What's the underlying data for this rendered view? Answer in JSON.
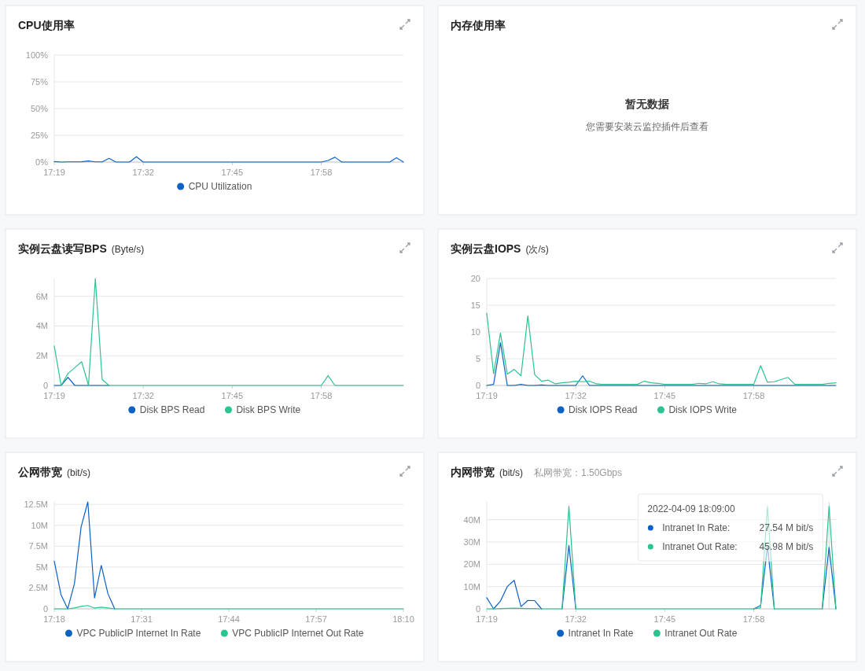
{
  "chart_data": [
    {
      "type": "line",
      "title": "CPU使用率",
      "legend": "bottom",
      "grid": "y",
      "x": [
        "2022-04-09T17:19",
        "2022-04-09T17:20",
        "2022-04-09T17:21",
        "2022-04-09T17:22",
        "2022-04-09T17:23",
        "2022-04-09T17:24",
        "2022-04-09T17:25",
        "2022-04-09T17:26",
        "2022-04-09T17:27",
        "2022-04-09T17:28",
        "2022-04-09T17:29",
        "2022-04-09T17:30",
        "2022-04-09T17:31",
        "2022-04-09T17:32",
        "2022-04-09T17:33",
        "2022-04-09T17:34",
        "2022-04-09T17:35",
        "2022-04-09T17:36",
        "2022-04-09T17:37",
        "2022-04-09T17:38",
        "2022-04-09T17:39",
        "2022-04-09T17:40",
        "2022-04-09T17:41",
        "2022-04-09T17:42",
        "2022-04-09T17:43",
        "2022-04-09T17:44",
        "2022-04-09T17:45",
        "2022-04-09T17:46",
        "2022-04-09T17:47",
        "2022-04-09T17:48",
        "2022-04-09T17:49",
        "2022-04-09T17:50",
        "2022-04-09T17:51",
        "2022-04-09T17:52",
        "2022-04-09T17:53",
        "2022-04-09T17:54",
        "2022-04-09T17:55",
        "2022-04-09T17:56",
        "2022-04-09T17:57",
        "2022-04-09T17:58",
        "2022-04-09T17:59",
        "2022-04-09T18:00",
        "2022-04-09T18:01",
        "2022-04-09T18:02",
        "2022-04-09T18:03",
        "2022-04-09T18:04",
        "2022-04-09T18:05",
        "2022-04-09T18:06",
        "2022-04-09T18:07",
        "2022-04-09T18:08",
        "2022-04-09T18:09",
        "2022-04-09T18:10"
      ],
      "xlim": [
        "2022-04-09T17:19",
        "2022-04-09T18:10"
      ],
      "xticks": [
        {
          "value": "2022-04-09T17:19",
          "label": "17:19"
        },
        {
          "value": "2022-04-09T17:32",
          "label": "17:32"
        },
        {
          "value": "2022-04-09T17:45",
          "label": "17:45"
        },
        {
          "value": "2022-04-09T17:58",
          "label": "17:58"
        }
      ],
      "ylim": [
        0,
        100
      ],
      "yticks": [
        {
          "value": 0,
          "label": "0%"
        },
        {
          "value": 25,
          "label": "25%"
        },
        {
          "value": 50,
          "label": "50%"
        },
        {
          "value": 75,
          "label": "75%"
        },
        {
          "value": 100,
          "label": "100%"
        }
      ],
      "series": [
        {
          "name": "CPU Utilization",
          "color": "#0b62c4",
          "values": [
            0.5,
            0,
            0.2,
            0.2,
            0.3,
            1,
            0.2,
            0.2,
            3.5,
            0,
            0,
            0,
            5,
            0,
            0,
            0,
            0,
            0,
            0,
            0,
            0,
            0,
            0,
            0,
            0,
            0,
            0,
            0,
            0,
            0,
            0,
            0,
            0,
            0,
            0,
            0,
            0,
            0,
            0,
            0,
            1.5,
            4.5,
            0,
            0,
            0,
            0,
            0,
            0,
            0,
            0,
            4,
            0
          ]
        }
      ]
    },
    {
      "type": "other",
      "title": "内存使用率",
      "annotations": [
        "暂无数据",
        "您需要安装云监控插件后查看"
      ]
    },
    {
      "type": "line",
      "title": "实例云盘读写BPS",
      "subtitle": "(Byte/s)",
      "legend": "bottom",
      "grid": "y",
      "x": [
        "2022-04-09T17:19",
        "2022-04-09T17:20",
        "2022-04-09T17:21",
        "2022-04-09T17:22",
        "2022-04-09T17:23",
        "2022-04-09T17:24",
        "2022-04-09T17:25",
        "2022-04-09T17:26",
        "2022-04-09T17:27",
        "2022-04-09T17:28",
        "2022-04-09T17:29",
        "2022-04-09T17:30",
        "2022-04-09T17:31",
        "2022-04-09T17:32",
        "2022-04-09T17:33",
        "2022-04-09T17:34",
        "2022-04-09T17:35",
        "2022-04-09T17:36",
        "2022-04-09T17:37",
        "2022-04-09T17:38",
        "2022-04-09T17:39",
        "2022-04-09T17:40",
        "2022-04-09T17:41",
        "2022-04-09T17:42",
        "2022-04-09T17:43",
        "2022-04-09T17:44",
        "2022-04-09T17:45",
        "2022-04-09T17:46",
        "2022-04-09T17:47",
        "2022-04-09T17:48",
        "2022-04-09T17:49",
        "2022-04-09T17:50",
        "2022-04-09T17:51",
        "2022-04-09T17:52",
        "2022-04-09T17:53",
        "2022-04-09T17:54",
        "2022-04-09T17:55",
        "2022-04-09T17:56",
        "2022-04-09T17:57",
        "2022-04-09T17:58",
        "2022-04-09T17:59",
        "2022-04-09T18:00",
        "2022-04-09T18:01",
        "2022-04-09T18:02",
        "2022-04-09T18:03",
        "2022-04-09T18:04",
        "2022-04-09T18:05",
        "2022-04-09T18:06",
        "2022-04-09T18:07",
        "2022-04-09T18:08",
        "2022-04-09T18:09",
        "2022-04-09T18:10"
      ],
      "xlim": [
        "2022-04-09T17:19",
        "2022-04-09T18:10"
      ],
      "xticks": [
        {
          "value": "2022-04-09T17:19",
          "label": "17:19"
        },
        {
          "value": "2022-04-09T17:32",
          "label": "17:32"
        },
        {
          "value": "2022-04-09T17:45",
          "label": "17:45"
        },
        {
          "value": "2022-04-09T17:58",
          "label": "17:58"
        }
      ],
      "ylim": [
        0,
        7200000
      ],
      "yticks": [
        {
          "value": 0,
          "label": "0"
        },
        {
          "value": 2000000,
          "label": "2M"
        },
        {
          "value": 4000000,
          "label": "4M"
        },
        {
          "value": 6000000,
          "label": "6M"
        }
      ],
      "series": [
        {
          "name": "Disk BPS Read",
          "color": "#0b62c4",
          "values": [
            0,
            0,
            550000,
            0,
            0,
            0,
            0,
            0,
            0,
            null,
            null,
            null,
            null,
            null,
            null,
            null,
            null,
            null,
            null,
            null,
            null,
            null,
            null,
            null,
            null,
            null,
            null,
            null,
            null,
            null,
            null,
            null,
            null,
            null,
            null,
            null,
            null,
            null,
            null,
            null,
            null,
            null,
            null,
            null,
            null,
            null,
            null,
            null,
            null,
            null,
            null,
            null
          ]
        },
        {
          "name": "Disk BPS Write",
          "color": "#2bc48f",
          "values": [
            2650000,
            0,
            800000,
            1200000,
            1600000,
            0,
            7200000,
            400000,
            0,
            0,
            0,
            0,
            0,
            0,
            0,
            0,
            0,
            0,
            0,
            0,
            0,
            0,
            0,
            0,
            0,
            0,
            0,
            0,
            0,
            0,
            0,
            0,
            0,
            0,
            0,
            0,
            0,
            0,
            0,
            0,
            650000,
            0,
            0,
            0,
            0,
            0,
            0,
            0,
            0,
            0,
            0,
            0
          ]
        }
      ]
    },
    {
      "type": "line",
      "title": "实例云盘IOPS",
      "subtitle": "(次/s)",
      "legend": "bottom",
      "grid": "y",
      "x": [
        "2022-04-09T17:19",
        "2022-04-09T17:20",
        "2022-04-09T17:21",
        "2022-04-09T17:22",
        "2022-04-09T17:23",
        "2022-04-09T17:24",
        "2022-04-09T17:25",
        "2022-04-09T17:26",
        "2022-04-09T17:27",
        "2022-04-09T17:28",
        "2022-04-09T17:29",
        "2022-04-09T17:30",
        "2022-04-09T17:31",
        "2022-04-09T17:32",
        "2022-04-09T17:33",
        "2022-04-09T17:34",
        "2022-04-09T17:35",
        "2022-04-09T17:36",
        "2022-04-09T17:37",
        "2022-04-09T17:38",
        "2022-04-09T17:39",
        "2022-04-09T17:40",
        "2022-04-09T17:41",
        "2022-04-09T17:42",
        "2022-04-09T17:43",
        "2022-04-09T17:44",
        "2022-04-09T17:45",
        "2022-04-09T17:46",
        "2022-04-09T17:47",
        "2022-04-09T17:48",
        "2022-04-09T17:49",
        "2022-04-09T17:50",
        "2022-04-09T17:51",
        "2022-04-09T17:52",
        "2022-04-09T17:53",
        "2022-04-09T17:54",
        "2022-04-09T17:55",
        "2022-04-09T17:56",
        "2022-04-09T17:57",
        "2022-04-09T17:58",
        "2022-04-09T17:59",
        "2022-04-09T18:00",
        "2022-04-09T18:01",
        "2022-04-09T18:02",
        "2022-04-09T18:03",
        "2022-04-09T18:04",
        "2022-04-09T18:05",
        "2022-04-09T18:06",
        "2022-04-09T18:07",
        "2022-04-09T18:08",
        "2022-04-09T18:09",
        "2022-04-09T18:10"
      ],
      "xlim": [
        "2022-04-09T17:19",
        "2022-04-09T18:10"
      ],
      "xticks": [
        {
          "value": "2022-04-09T17:19",
          "label": "17:19"
        },
        {
          "value": "2022-04-09T17:32",
          "label": "17:32"
        },
        {
          "value": "2022-04-09T17:45",
          "label": "17:45"
        },
        {
          "value": "2022-04-09T17:58",
          "label": "17:58"
        }
      ],
      "ylim": [
        0,
        20
      ],
      "yticks": [
        0,
        5,
        10,
        15,
        20
      ],
      "series": [
        {
          "name": "Disk IOPS Read",
          "color": "#0b62c4",
          "values": [
            0,
            0.2,
            8,
            0,
            0,
            0.2,
            0,
            0,
            0.1,
            0,
            0,
            0,
            0,
            0,
            1.8,
            0,
            0,
            0,
            0,
            0,
            0,
            0,
            0,
            0,
            0,
            0,
            0,
            0,
            0,
            0,
            0,
            0,
            0,
            0,
            0,
            0,
            0,
            0,
            0,
            0,
            0,
            0,
            0,
            0,
            0,
            0,
            0,
            0,
            0,
            0,
            0,
            0
          ]
        },
        {
          "name": "Disk IOPS Write",
          "color": "#2bc48f",
          "values": [
            13.5,
            2.2,
            9.8,
            2.1,
            3,
            1.8,
            13,
            2,
            0.8,
            1,
            0.3,
            0.5,
            0.6,
            0.8,
            0.7,
            0.8,
            0.3,
            0.2,
            0.2,
            0.2,
            0.2,
            0.2,
            0.2,
            0.8,
            0.5,
            0.4,
            0.2,
            0.2,
            0.2,
            0.2,
            0.2,
            0.4,
            0.3,
            0.7,
            0.3,
            0.2,
            0.2,
            0.2,
            0.2,
            0.2,
            3.7,
            0.6,
            0.7,
            1.1,
            1.5,
            0.2,
            0.2,
            0.2,
            0.2,
            0.2,
            0.4,
            0.5
          ]
        }
      ]
    },
    {
      "type": "line",
      "title": "公网带宽",
      "subtitle": "(bit/s)",
      "legend": "bottom",
      "grid": "y",
      "x": [
        "2022-04-09T17:18",
        "2022-04-09T17:19",
        "2022-04-09T17:20",
        "2022-04-09T17:21",
        "2022-04-09T17:22",
        "2022-04-09T17:23",
        "2022-04-09T17:24",
        "2022-04-09T17:25",
        "2022-04-09T17:26",
        "2022-04-09T17:27",
        "2022-04-09T17:28",
        "2022-04-09T17:29",
        "2022-04-09T17:30",
        "2022-04-09T17:31",
        "2022-04-09T17:32",
        "2022-04-09T17:33",
        "2022-04-09T17:34",
        "2022-04-09T17:35",
        "2022-04-09T17:36",
        "2022-04-09T17:37",
        "2022-04-09T17:38",
        "2022-04-09T17:39",
        "2022-04-09T17:40",
        "2022-04-09T17:41",
        "2022-04-09T17:42",
        "2022-04-09T17:43",
        "2022-04-09T17:44",
        "2022-04-09T17:45",
        "2022-04-09T17:46",
        "2022-04-09T17:47",
        "2022-04-09T17:48",
        "2022-04-09T17:49",
        "2022-04-09T17:50",
        "2022-04-09T17:51",
        "2022-04-09T17:52",
        "2022-04-09T17:53",
        "2022-04-09T17:54",
        "2022-04-09T17:55",
        "2022-04-09T17:56",
        "2022-04-09T17:57",
        "2022-04-09T17:58",
        "2022-04-09T17:59",
        "2022-04-09T18:00",
        "2022-04-09T18:01",
        "2022-04-09T18:02",
        "2022-04-09T18:03",
        "2022-04-09T18:04",
        "2022-04-09T18:05",
        "2022-04-09T18:06",
        "2022-04-09T18:07",
        "2022-04-09T18:08",
        "2022-04-09T18:09",
        "2022-04-09T18:10"
      ],
      "xlim": [
        "2022-04-09T17:18",
        "2022-04-09T18:10"
      ],
      "xticks": [
        {
          "value": "2022-04-09T17:18",
          "label": "17:18"
        },
        {
          "value": "2022-04-09T17:31",
          "label": "17:31"
        },
        {
          "value": "2022-04-09T17:44",
          "label": "17:44"
        },
        {
          "value": "2022-04-09T17:57",
          "label": "17:57"
        },
        {
          "value": "2022-04-09T18:10",
          "label": "18:10"
        }
      ],
      "ylim": [
        0,
        12800000
      ],
      "yticks": [
        {
          "value": 0,
          "label": "0"
        },
        {
          "value": 2500000,
          "label": "2.5M"
        },
        {
          "value": 5000000,
          "label": "5M"
        },
        {
          "value": 7500000,
          "label": "7.5M"
        },
        {
          "value": 10000000,
          "label": "10M"
        },
        {
          "value": 12500000,
          "label": "12.5M"
        }
      ],
      "series": [
        {
          "name": "VPC PublicIP Internet In Rate",
          "color": "#0b62c4",
          "values": [
            5700000,
            1700000,
            0,
            3000000,
            9800000,
            12800000,
            1300000,
            5200000,
            1800000,
            0,
            null,
            null,
            null,
            null,
            null,
            null,
            null,
            null,
            null,
            null,
            null,
            null,
            null,
            null,
            null,
            null,
            null,
            null,
            null,
            null,
            null,
            null,
            null,
            null,
            null,
            null,
            null,
            null,
            null,
            null,
            null,
            null,
            null,
            null,
            null,
            null,
            null,
            null,
            null,
            null,
            null,
            null,
            null
          ]
        },
        {
          "name": "VPC PublicIP Internet Out Rate",
          "color": "#2bc48f",
          "values": [
            0,
            0,
            0,
            100000,
            300000,
            400000,
            100000,
            200000,
            100000,
            0,
            0,
            0,
            0,
            0,
            0,
            0,
            0,
            0,
            0,
            0,
            0,
            0,
            0,
            0,
            0,
            0,
            0,
            0,
            0,
            0,
            0,
            0,
            0,
            0,
            0,
            0,
            0,
            0,
            0,
            0,
            0,
            0,
            0,
            0,
            0,
            0,
            0,
            0,
            0,
            0,
            0,
            0,
            0
          ]
        }
      ]
    },
    {
      "type": "line",
      "title": "内网带宽",
      "subtitle": "(bit/s)",
      "legend": "bottom",
      "grid": "y",
      "annotations": [
        "私网带宽：1.50Gbps",
        "2022-04-09 18:09:00",
        "Intranet In Rate:",
        "Intranet Out Rate:",
        "27.54 M bit/s",
        "45.98 M bit/s"
      ],
      "ref_lines": [
        {
          "axis": "x",
          "value": "2022-04-09T18:09",
          "color": "#d6d6d6"
        }
      ],
      "x": [
        "2022-04-09T17:19",
        "2022-04-09T17:20",
        "2022-04-09T17:21",
        "2022-04-09T17:22",
        "2022-04-09T17:23",
        "2022-04-09T17:24",
        "2022-04-09T17:25",
        "2022-04-09T17:26",
        "2022-04-09T17:27",
        "2022-04-09T17:28",
        "2022-04-09T17:29",
        "2022-04-09T17:30",
        "2022-04-09T17:31",
        "2022-04-09T17:32",
        "2022-04-09T17:33",
        "2022-04-09T17:34",
        "2022-04-09T17:35",
        "2022-04-09T17:36",
        "2022-04-09T17:37",
        "2022-04-09T17:38",
        "2022-04-09T17:39",
        "2022-04-09T17:40",
        "2022-04-09T17:41",
        "2022-04-09T17:42",
        "2022-04-09T17:43",
        "2022-04-09T17:44",
        "2022-04-09T17:45",
        "2022-04-09T17:46",
        "2022-04-09T17:47",
        "2022-04-09T17:48",
        "2022-04-09T17:49",
        "2022-04-09T17:50",
        "2022-04-09T17:51",
        "2022-04-09T17:52",
        "2022-04-09T17:53",
        "2022-04-09T17:54",
        "2022-04-09T17:55",
        "2022-04-09T17:56",
        "2022-04-09T17:57",
        "2022-04-09T17:58",
        "2022-04-09T17:59",
        "2022-04-09T18:00",
        "2022-04-09T18:01",
        "2022-04-09T18:02",
        "2022-04-09T18:03",
        "2022-04-09T18:04",
        "2022-04-09T18:05",
        "2022-04-09T18:06",
        "2022-04-09T18:07",
        "2022-04-09T18:08",
        "2022-04-09T18:09",
        "2022-04-09T18:10"
      ],
      "xlim": [
        "2022-04-09T17:19",
        "2022-04-09T18:10"
      ],
      "xticks": [
        {
          "value": "2022-04-09T17:19",
          "label": "17:19"
        },
        {
          "value": "2022-04-09T17:32",
          "label": "17:32"
        },
        {
          "value": "2022-04-09T17:45",
          "label": "17:45"
        },
        {
          "value": "2022-04-09T17:58",
          "label": "17:58"
        }
      ],
      "ylim": [
        0,
        48000000
      ],
      "yticks": [
        {
          "value": 0,
          "label": "0"
        },
        {
          "value": 10000000,
          "label": "10M"
        },
        {
          "value": 20000000,
          "label": "20M"
        },
        {
          "value": 30000000,
          "label": "30M"
        },
        {
          "value": 40000000,
          "label": "40M"
        }
      ],
      "series": [
        {
          "name": "Intranet In Rate",
          "color": "#0b62c4",
          "values": [
            5000000,
            0,
            3500000,
            10000000,
            12800000,
            1000000,
            3800000,
            3700000,
            0,
            null,
            null,
            0,
            28500000,
            0,
            null,
            null,
            null,
            null,
            null,
            null,
            null,
            null,
            null,
            null,
            null,
            null,
            null,
            null,
            null,
            null,
            null,
            null,
            null,
            null,
            null,
            null,
            null,
            null,
            null,
            0,
            1500000,
            28000000,
            0,
            null,
            null,
            null,
            null,
            null,
            null,
            0,
            27540000,
            0
          ]
        },
        {
          "name": "Intranet Out Rate",
          "color": "#2bc48f",
          "values": [
            0,
            0,
            100000,
            200000,
            300000,
            200000,
            100000,
            100000,
            0,
            0,
            0,
            0,
            46000000,
            0,
            0,
            0,
            0,
            0,
            0,
            0,
            0,
            0,
            0,
            0,
            0,
            0,
            0,
            0,
            0,
            0,
            0,
            0,
            0,
            0,
            0,
            0,
            0,
            0,
            0,
            0,
            500000,
            46000000,
            0,
            0,
            0,
            0,
            0,
            0,
            0,
            0,
            45980000,
            0
          ]
        }
      ]
    }
  ]
}
